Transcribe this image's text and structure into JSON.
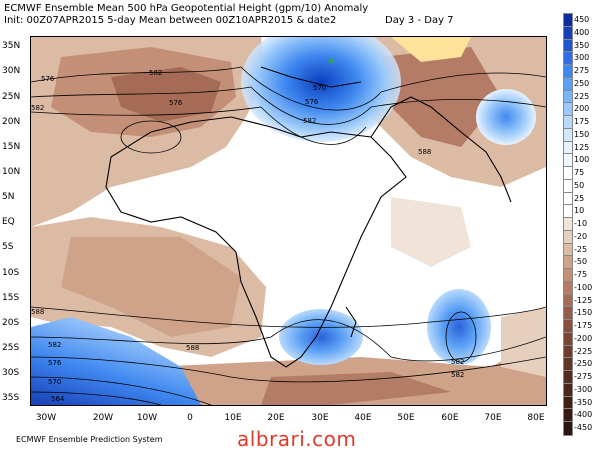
{
  "header": {
    "title_line1": "ECMWF Ensemble Mean 500 hPa Geopotential Height (gpm/10) Anomaly",
    "title_line2": "Init: 00Z07APR2015 5-day Mean between 00Z10APR2015 & date2",
    "title_line2_right": "Day 3 - Day 7"
  },
  "axes": {
    "lat_labels": [
      "35N",
      "30N",
      "25N",
      "20N",
      "15N",
      "10N",
      "5N",
      "EQ",
      "5S",
      "10S",
      "15S",
      "20S",
      "25S",
      "30S",
      "35S"
    ],
    "lon_labels": [
      "30W",
      "20W",
      "10W",
      "0",
      "10E",
      "20E",
      "30E",
      "40E",
      "50E",
      "60E",
      "70E",
      "80E"
    ]
  },
  "contour_labels": [
    "582",
    "576",
    "582",
    "576",
    "570",
    "582",
    "576",
    "588",
    "588",
    "582",
    "576",
    "570",
    "564",
    "588",
    "582",
    "582"
  ],
  "legend": {
    "values": [
      "450",
      "400",
      "350",
      "300",
      "275",
      "250",
      "225",
      "200",
      "175",
      "150",
      "125",
      "100",
      "75",
      "50",
      "25",
      "10",
      "-10",
      "-20",
      "-25",
      "-50",
      "-75",
      "-100",
      "-125",
      "-150",
      "-175",
      "-200",
      "-225",
      "-250",
      "-275",
      "-300",
      "-350",
      "-400",
      "-450"
    ],
    "colors": [
      "#0a2ea0",
      "#163fb8",
      "#1f55d0",
      "#2e6fe6",
      "#3f88f0",
      "#5aa0f5",
      "#78b6f8",
      "#9ac9fa",
      "#b9dafc",
      "#d3e8fd",
      "#e6f2fe",
      "#f2f8ff",
      "#ffffff",
      "#ffffff",
      "#ffffff",
      "#ffffff",
      "#f0e3d8",
      "#e6cfbd",
      "#dcbba4",
      "#cfa38a",
      "#c48f77",
      "#b47b66",
      "#a66b57",
      "#945c4a",
      "#874f3e",
      "#7a4535",
      "#6e3c2d",
      "#623426",
      "#562c20",
      "#4c261b",
      "#402016",
      "#361a12",
      "#2c150e"
    ]
  },
  "footer": {
    "credit": "ECMWF Ensemble Prediction System",
    "watermark": "albrari.com"
  }
}
